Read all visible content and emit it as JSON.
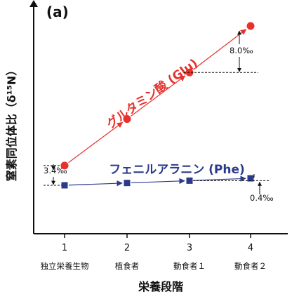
{
  "chart_data": {
    "type": "line",
    "panel_label": "(a)",
    "ylabel": "窒素同位体比（δ¹⁵N）",
    "xlabel": "栄養段階",
    "x": [
      1,
      2,
      3,
      4
    ],
    "tick_labels": [
      "1",
      "2",
      "3",
      "4"
    ],
    "categories": [
      "独立栄養生物",
      "植食者",
      "動食者１",
      "動食者２"
    ],
    "series": [
      {
        "name": "グルタミン酸 (Glu)",
        "color": "#e8302c",
        "marker": "circle",
        "values": [
          3.4,
          11.4,
          19.4,
          27.4
        ]
      },
      {
        "name": "フェニルアラニン (Phe)",
        "color": "#2c3a8c",
        "marker": "square",
        "values": [
          0.0,
          0.4,
          0.8,
          1.2
        ]
      }
    ],
    "annotations": [
      {
        "text": "3.4‰"
      },
      {
        "text": "8.0‰"
      },
      {
        "text": "0.4‰"
      }
    ],
    "axis_color": "#111111"
  }
}
